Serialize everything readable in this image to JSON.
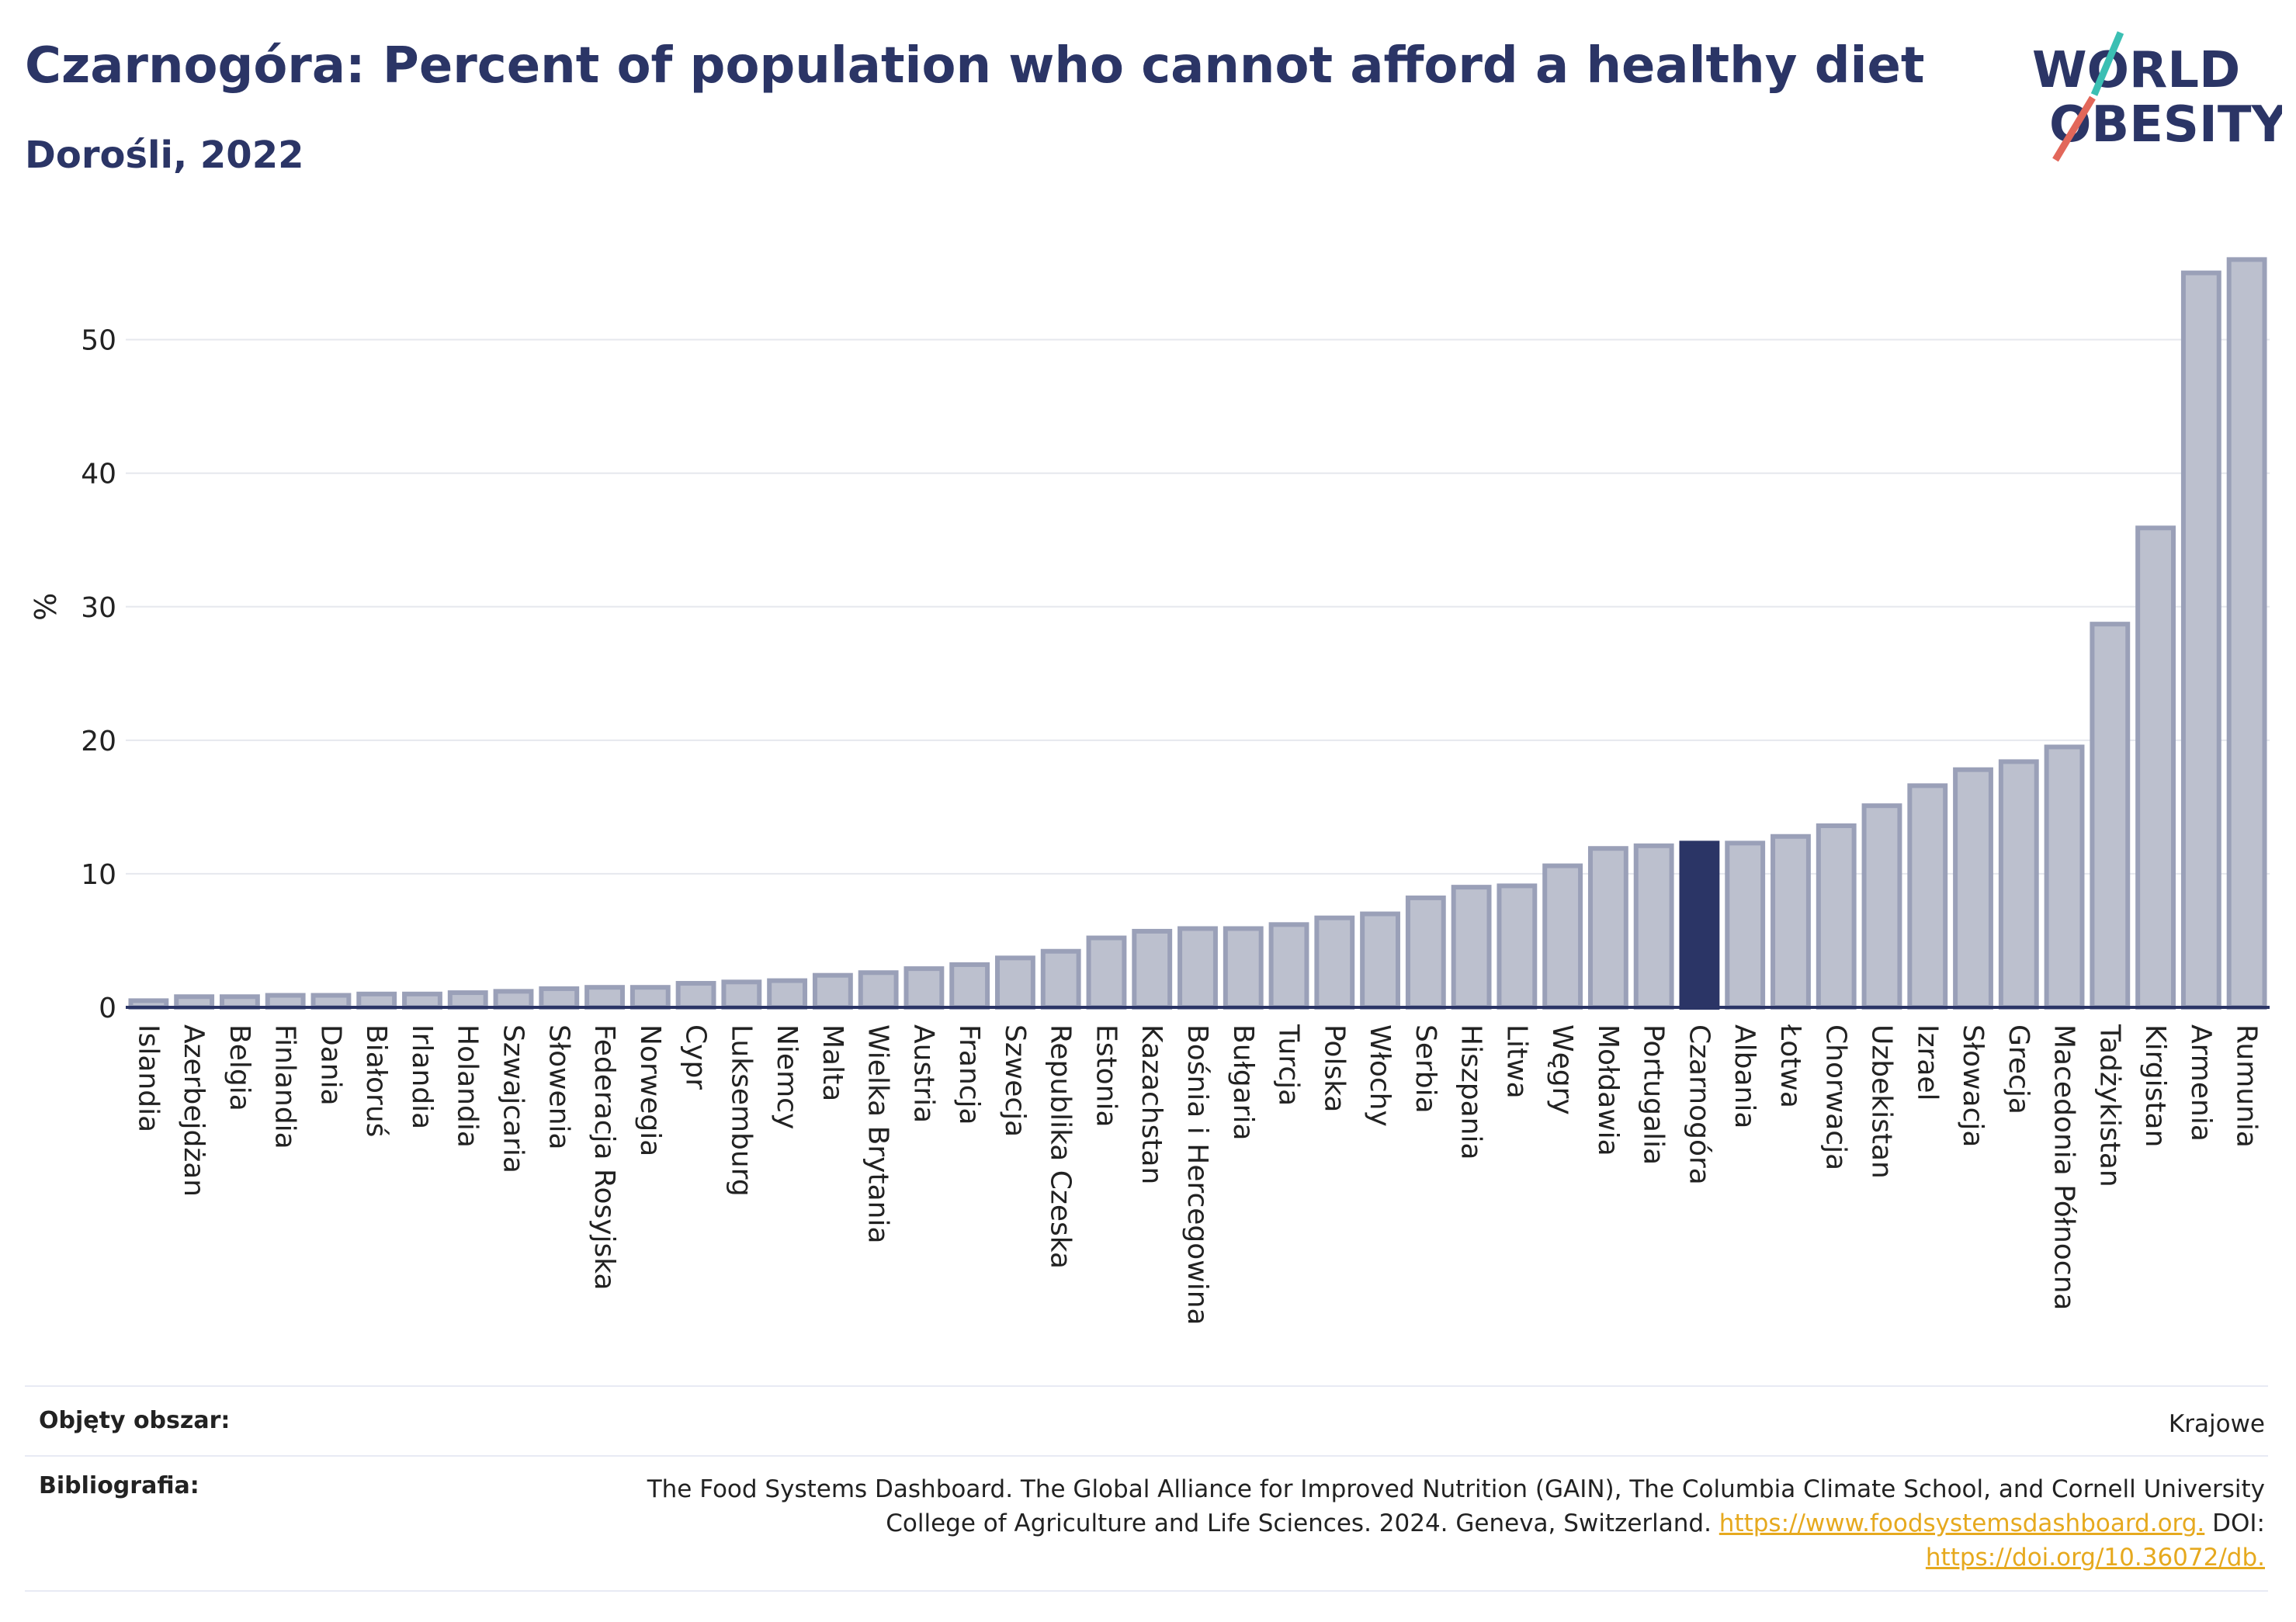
{
  "header": {
    "title": "Czarnogóra: Percent of population who cannot afford a healthy diet",
    "subtitle": "Dorośli, 2022"
  },
  "logo": {
    "line1": "WORLD",
    "line2": "OBESITY",
    "accent_teal": "#3bbfb3",
    "accent_red": "#e2675a"
  },
  "colors": {
    "bar": "#bcc0ce",
    "bar_border": "#9aa0b8",
    "highlight": "#2b3566",
    "grid": "#e6e8ee"
  },
  "chart_data": {
    "type": "bar",
    "title": "Czarnogóra: Percent of population who cannot afford a healthy diet",
    "subtitle": "Dorośli, 2022",
    "ylabel": "%",
    "xlabel": "",
    "ylim": [
      0,
      58
    ],
    "yticks": [
      0,
      10,
      20,
      30,
      40,
      50
    ],
    "grid": true,
    "highlight": "Czarnogóra",
    "categories": [
      "Islandia",
      "Azerbejdżan",
      "Belgia",
      "Finlandia",
      "Dania",
      "Białoruś",
      "Irlandia",
      "Holandia",
      "Szwajcaria",
      "Słowenia",
      "Federacja Rosyjska",
      "Norwegia",
      "Cypr",
      "Luksemburg",
      "Niemcy",
      "Malta",
      "Wielka Brytania",
      "Austria",
      "Francja",
      "Szwecja",
      "Republika Czeska",
      "Estonia",
      "Kazachstan",
      "Bośnia i Hercegowina",
      "Bułgaria",
      "Turcja",
      "Polska",
      "Włochy",
      "Serbia",
      "Hiszpania",
      "Litwa",
      "Węgry",
      "Mołdawia",
      "Portugalia",
      "Czarnogóra",
      "Albania",
      "Łotwa",
      "Chorwacja",
      "Uzbekistan",
      "Izrael",
      "Słowacja",
      "Grecja",
      "Macedonia Północna",
      "Tadżykistan",
      "Kirgistan",
      "Armenia",
      "Rumunia"
    ],
    "values": [
      0.5,
      0.8,
      0.8,
      0.9,
      0.9,
      1.0,
      1.0,
      1.1,
      1.2,
      1.4,
      1.5,
      1.5,
      1.8,
      1.9,
      2.0,
      2.4,
      2.6,
      2.9,
      3.2,
      3.7,
      4.2,
      5.2,
      5.7,
      5.9,
      5.9,
      6.2,
      6.7,
      7.0,
      8.2,
      9.0,
      9.1,
      10.6,
      11.9,
      12.1,
      12.3,
      12.3,
      12.8,
      13.6,
      15.1,
      16.6,
      17.8,
      18.4,
      19.5,
      28.7,
      35.9,
      55.0,
      56.0
    ]
  },
  "footer": {
    "coverage_label": "Objęty obszar:",
    "coverage_value": "Krajowe",
    "bibliography_label": "Bibliografia:",
    "bibliography_line1": "The Food Systems Dashboard. The Global Alliance for Improved Nutrition (GAIN), The Columbia Climate School, and Cornell University",
    "bibliography_line2_text": "College of Agriculture and Life Sciences. 2024. Geneva, Switzerland.",
    "bibliography_link1": "https://www.foodsystemsdashboard.org.",
    "bibliography_doi_label": "DOI:",
    "bibliography_link2": "https://doi.org/10.36072/db."
  }
}
